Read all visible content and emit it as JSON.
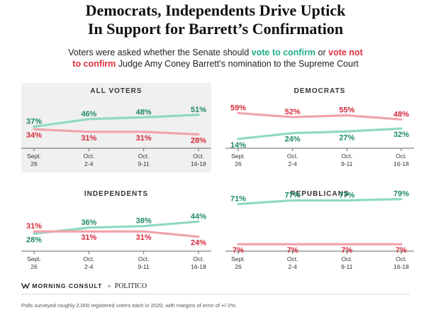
{
  "title_line1": "Democrats, Independents Drive Uptick",
  "title_line2": "In Support for Barrett’s Confirmation",
  "subtitle": {
    "part1": "Voters were asked whether the Senate should ",
    "confirm": "vote to confirm",
    "part2": " or ",
    "not_confirm_a": "vote not",
    "not_confirm_b": "to confirm",
    "part3": " Judge Amy Coney Barrett’s nomination to the Supreme Court"
  },
  "colors": {
    "confirm": "#1fae88",
    "not_confirm": "#e0303f",
    "confirm_line": "#8fd9c2",
    "not_confirm_line": "#f2a3ab",
    "confirm_label": "#1c8a68",
    "not_confirm_label": "#d42a3a"
  },
  "chart_data": [
    {
      "type": "line",
      "title": "ALL VOTERS",
      "shaded": true,
      "x": [
        [
          "Sept.",
          "26"
        ],
        [
          "Oct.",
          "2-4"
        ],
        [
          "Oct.",
          "9-11"
        ],
        [
          "Oct.",
          "16-18"
        ]
      ],
      "series": [
        {
          "key": "confirm",
          "values": [
            37,
            46,
            48,
            51
          ],
          "labels": [
            "37%",
            "46%",
            "48%",
            "51%"
          ]
        },
        {
          "key": "not_confirm",
          "values": [
            34,
            31,
            31,
            28
          ],
          "labels": [
            "34%",
            "31%",
            "31%",
            "28%"
          ]
        }
      ]
    },
    {
      "type": "line",
      "title": "DEMOCRATS",
      "shaded": false,
      "x": [
        [
          "Sept.",
          "26"
        ],
        [
          "Oct.",
          "2-4"
        ],
        [
          "Oct.",
          "9-11"
        ],
        [
          "Oct.",
          "16-18"
        ]
      ],
      "series": [
        {
          "key": "confirm",
          "values": [
            14,
            24,
            27,
            32
          ],
          "labels": [
            "14%",
            "24%",
            "27%",
            "32%"
          ]
        },
        {
          "key": "not_confirm",
          "values": [
            59,
            52,
            55,
            48
          ],
          "labels": [
            "59%",
            "52%",
            "55%",
            "48%"
          ]
        }
      ]
    },
    {
      "type": "line",
      "title": "INDEPENDENTS",
      "shaded": false,
      "x": [
        [
          "Sept.",
          "26"
        ],
        [
          "Oct.",
          "2-4"
        ],
        [
          "Oct.",
          "9-11"
        ],
        [
          "Oct.",
          "16-18"
        ]
      ],
      "series": [
        {
          "key": "confirm",
          "values": [
            28,
            36,
            38,
            44
          ],
          "labels": [
            "28%",
            "36%",
            "38%",
            "44%"
          ]
        },
        {
          "key": "not_confirm",
          "values": [
            31,
            31,
            31,
            24
          ],
          "labels": [
            "31%",
            "31%",
            "31%",
            "24%"
          ]
        }
      ]
    },
    {
      "type": "line",
      "title": "REPUBLICANS",
      "shaded": false,
      "x": [
        [
          "Sept.",
          "26"
        ],
        [
          "Oct.",
          "2-4"
        ],
        [
          "Oct.",
          "9-11"
        ],
        [
          "Oct.",
          "16-18"
        ]
      ],
      "series": [
        {
          "key": "confirm",
          "values": [
            71,
            77,
            77,
            79
          ],
          "labels": [
            "71%",
            "77%",
            "77%",
            "79%"
          ]
        },
        {
          "key": "not_confirm",
          "values": [
            7,
            7,
            7,
            7
          ],
          "labels": [
            "7%",
            "7%",
            "7%",
            "7%"
          ]
        }
      ]
    }
  ],
  "brand": {
    "left": "MORNING CONSULT",
    "sep": "+",
    "right": "POLITICO"
  },
  "note": "Polls surveyed roughly 2,000 registered voters each in 2020, with margins of error of +/-2%."
}
